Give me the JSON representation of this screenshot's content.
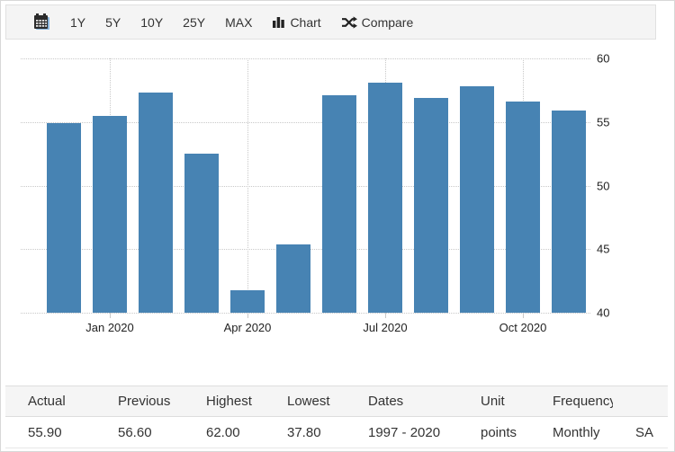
{
  "toolbar": {
    "range_buttons": [
      "1Y",
      "5Y",
      "10Y",
      "25Y",
      "MAX"
    ],
    "chart_label": "Chart",
    "compare_label": "Compare",
    "icons": [
      "calendar-icon",
      "bar-chart-icon",
      "shuffle-icon"
    ]
  },
  "chart_data": {
    "type": "bar",
    "title": "",
    "categories": [
      "Dec 2019",
      "Jan 2020",
      "Feb 2020",
      "Mar 2020",
      "Apr 2020",
      "May 2020",
      "Jun 2020",
      "Jul 2020",
      "Aug 2020",
      "Sep 2020",
      "Oct 2020",
      "Nov 2020"
    ],
    "values": [
      54.9,
      55.5,
      57.3,
      52.5,
      41.8,
      45.4,
      57.1,
      58.1,
      56.9,
      57.8,
      56.6,
      55.9
    ],
    "xlabel": "",
    "ylabel": "",
    "ylim": [
      40,
      60
    ],
    "y_ticks": [
      60,
      55,
      50,
      45,
      40
    ],
    "x_tick_labels": [
      {
        "label": "Jan 2020",
        "index": 1
      },
      {
        "label": "Apr 2020",
        "index": 4
      },
      {
        "label": "Jul 2020",
        "index": 7
      },
      {
        "label": "Oct 2020",
        "index": 10
      }
    ],
    "grid": "dotted",
    "legend": "none",
    "bar_color": "#4783b3"
  },
  "table": {
    "headers": [
      "Actual",
      "Previous",
      "Highest",
      "Lowest",
      "Dates",
      "Unit",
      "Frequency",
      ""
    ],
    "values": [
      "55.90",
      "56.60",
      "62.00",
      "37.80",
      "1997 - 2020",
      "points",
      "Monthly",
      "SA"
    ]
  },
  "colors": {
    "bar": "#4783b3",
    "toolbar_bg": "#f4f4f4",
    "header_bg": "#f5f5f5",
    "grid": "#c9c9c9",
    "text": "#333333"
  }
}
